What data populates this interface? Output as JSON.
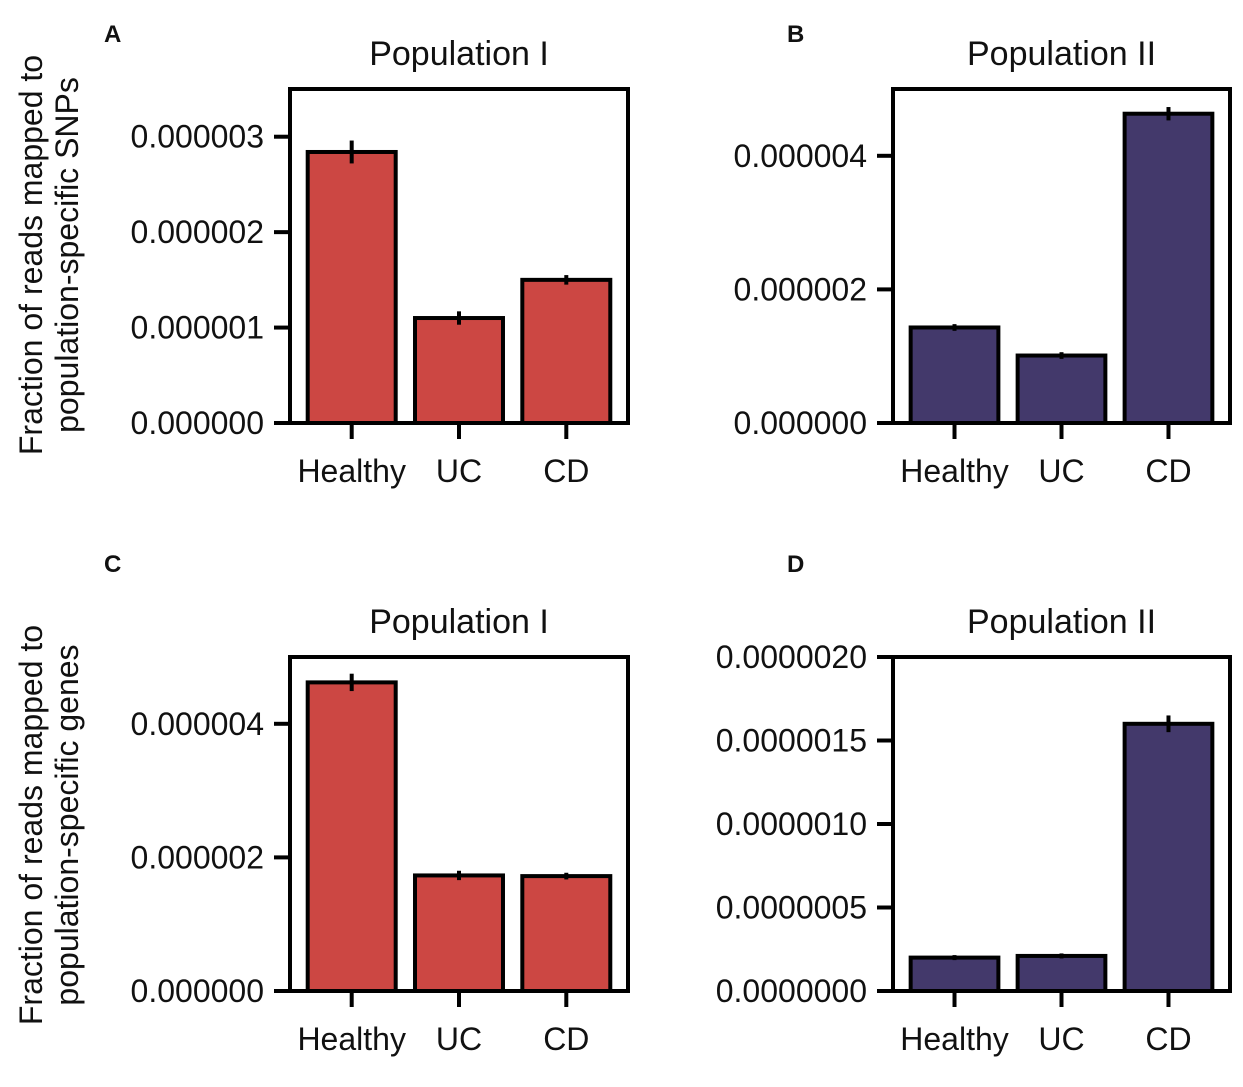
{
  "ylabels": {
    "top": [
      "Fraction of reads mapped to",
      "population-specific SNPs"
    ],
    "bottom": [
      "Fraction of reads mapped to",
      "population-specific genes"
    ]
  },
  "chart_data": [
    {
      "panel": "A",
      "type": "bar",
      "title": "Population I",
      "categories": [
        "Healthy",
        "UC",
        "CD"
      ],
      "values": [
        2.84e-06,
        1.1e-06,
        1.5e-06
      ],
      "errors": [
        1.2e-07,
        7e-08,
        5e-08
      ],
      "yticks": [
        0,
        1e-06,
        2e-06,
        3e-06
      ],
      "ytick_labels": [
        "0.000000",
        "0.000001",
        "0.000002",
        "0.000003"
      ],
      "ylim": [
        0,
        3.5e-06
      ],
      "color": "#cc4743"
    },
    {
      "panel": "B",
      "type": "bar",
      "title": "Population II",
      "categories": [
        "Healthy",
        "UC",
        "CD"
      ],
      "values": [
        1.43e-06,
        1.01e-06,
        4.63e-06
      ],
      "errors": [
        5e-08,
        5e-08,
        1e-07
      ],
      "yticks": [
        0,
        2e-06,
        4e-06
      ],
      "ytick_labels": [
        "0.000000",
        "0.000002",
        "0.000004"
      ],
      "ylim": [
        0,
        5e-06
      ],
      "color": "#43396b"
    },
    {
      "panel": "C",
      "type": "bar",
      "title": "Population I",
      "categories": [
        "Healthy",
        "UC",
        "CD"
      ],
      "values": [
        4.62e-06,
        1.73e-06,
        1.72e-06
      ],
      "errors": [
        1.3e-07,
        7e-08,
        5e-08
      ],
      "yticks": [
        0,
        2e-06,
        4e-06
      ],
      "ytick_labels": [
        "0.000000",
        "0.000002",
        "0.000004"
      ],
      "ylim": [
        0,
        5e-06
      ],
      "color": "#cc4743"
    },
    {
      "panel": "D",
      "type": "bar",
      "title": "Population II",
      "categories": [
        "Healthy",
        "UC",
        "CD"
      ],
      "values": [
        2e-07,
        2.1e-07,
        1.6e-06
      ],
      "errors": [
        1.5e-08,
        1.5e-08,
        5e-08
      ],
      "yticks": [
        0,
        5e-07,
        1e-06,
        1.5e-06,
        2e-06
      ],
      "ytick_labels": [
        "0.0000000",
        "0.0000005",
        "0.0000010",
        "0.0000015",
        "0.0000020"
      ],
      "ylim": [
        0,
        2e-06
      ],
      "color": "#43396b"
    }
  ]
}
